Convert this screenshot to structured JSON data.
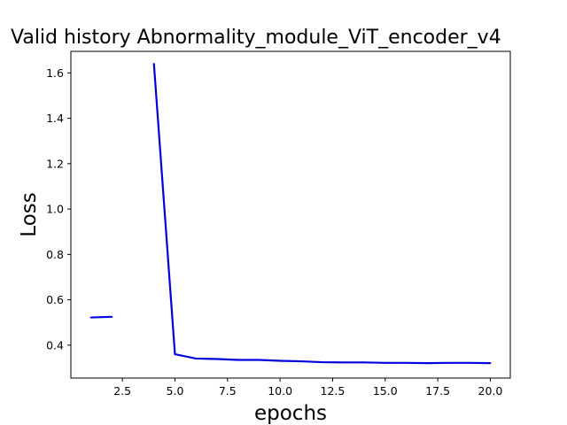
{
  "chart_data": {
    "type": "line",
    "title": "Valid history Abnormality_module_ViT_encoder_v4",
    "xlabel": "epochs",
    "ylabel": "Loss",
    "xlim": [
      0.05,
      20.95
    ],
    "ylim": [
      0.255,
      1.695
    ],
    "xticks": [
      2.5,
      5.0,
      7.5,
      10.0,
      12.5,
      15.0,
      17.5,
      20.0
    ],
    "xtick_labels": [
      "2.5",
      "5.0",
      "7.5",
      "10.0",
      "12.5",
      "15.0",
      "17.5",
      "20.0"
    ],
    "yticks": [
      0.4,
      0.6,
      0.8,
      1.0,
      1.2,
      1.4,
      1.6
    ],
    "ytick_labels": [
      "0.4",
      "0.6",
      "0.8",
      "1.0",
      "1.2",
      "1.4",
      "1.6"
    ],
    "grid": false,
    "colors": {
      "line": "#0000dd"
    },
    "series": [
      {
        "x": [
          1,
          2,
          3,
          4,
          5,
          6,
          7,
          8,
          9,
          10,
          11,
          12,
          13,
          14,
          15,
          16,
          17,
          18,
          19,
          20
        ],
        "values": [
          0.522,
          0.525,
          null,
          1.64,
          0.36,
          0.341,
          0.339,
          0.335,
          0.335,
          0.331,
          0.329,
          0.325,
          0.324,
          0.324,
          0.322,
          0.322,
          0.321,
          0.322,
          0.322,
          0.321
        ]
      }
    ]
  }
}
